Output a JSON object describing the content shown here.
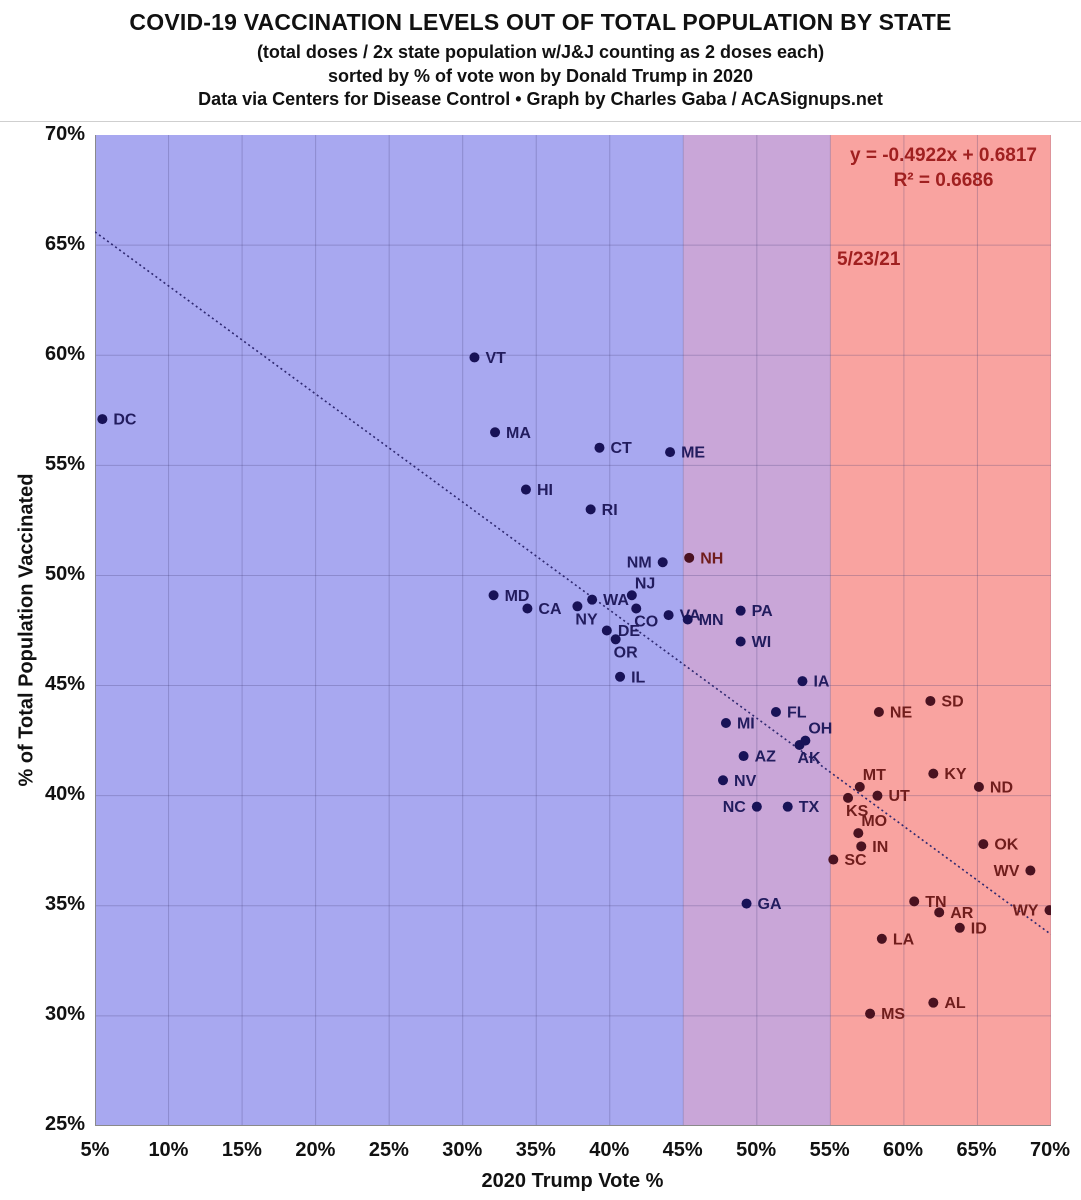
{
  "header": {
    "title": "COVID-19 VACCINATION LEVELS OUT OF TOTAL POPULATION BY STATE",
    "subtitle": "(total doses / 2x state population w/J&J counting as 2 doses each)",
    "sort_note": "sorted by % of vote won by Donald Trump in 2020",
    "source": "Data via Centers for Disease Control • Graph by Charles Gaba / ACASignups.net"
  },
  "annotations": {
    "equation_line1": "y = -0.4922x + 0.6817",
    "equation_line2": "R² = 0.6686",
    "date": "5/23/21",
    "annotation_color": "#a02020"
  },
  "axes": {
    "x_title": "2020 Trump Vote %",
    "y_title": "% of Total Population Vaccinated",
    "x_ticks": [
      {
        "v": 5,
        "t": "5%"
      },
      {
        "v": 10,
        "t": "10%"
      },
      {
        "v": 15,
        "t": "15%"
      },
      {
        "v": 20,
        "t": "20%"
      },
      {
        "v": 25,
        "t": "25%"
      },
      {
        "v": 30,
        "t": "30%"
      },
      {
        "v": 35,
        "t": "35%"
      },
      {
        "v": 40,
        "t": "40%"
      },
      {
        "v": 45,
        "t": "45%"
      },
      {
        "v": 50,
        "t": "50%"
      },
      {
        "v": 55,
        "t": "55%"
      },
      {
        "v": 60,
        "t": "60%"
      },
      {
        "v": 65,
        "t": "65%"
      },
      {
        "v": 70,
        "t": "70%"
      }
    ],
    "y_ticks": [
      {
        "v": 70,
        "t": "70%"
      },
      {
        "v": 65,
        "t": "65%"
      },
      {
        "v": 60,
        "t": "60%"
      },
      {
        "v": 55,
        "t": "55%"
      },
      {
        "v": 50,
        "t": "50%"
      },
      {
        "v": 45,
        "t": "45%"
      },
      {
        "v": 40,
        "t": "40%"
      },
      {
        "v": 35,
        "t": "35%"
      },
      {
        "v": 30,
        "t": "30%"
      },
      {
        "v": 25,
        "t": "25%"
      }
    ]
  },
  "regions": [
    {
      "name": "biden-strong",
      "from": 5,
      "to": 45,
      "color": "#a8a8f0"
    },
    {
      "name": "swing",
      "from": 45,
      "to": 55,
      "color": "#c9a6d8"
    },
    {
      "name": "trump-strong",
      "from": 55,
      "to": 70,
      "color": "#f9a3a0"
    }
  ],
  "point_colors": {
    "navy_dot": "#181257",
    "navy_label": "#221c5e",
    "maroon_dot": "#4a1220",
    "maroon_label": "#701d1c"
  },
  "grid_color": "rgba(70,60,120,0.28)",
  "axis_line_color": "#8a8a8a",
  "chart_data": {
    "type": "scatter",
    "title": "COVID-19 VACCINATION LEVELS OUT OF TOTAL POPULATION BY STATE",
    "xlabel": "2020 Trump Vote %",
    "ylabel": "% of Total Population Vaccinated",
    "xlim": [
      5,
      70
    ],
    "ylim": [
      25,
      70
    ],
    "grid": true,
    "legend": false,
    "trendline": {
      "equation": "y = -0.4922x + 0.6817",
      "r_squared": 0.6686,
      "x1": 5,
      "y1": 65.6,
      "x2": 70,
      "y2": 33.7,
      "style": "dotted",
      "color": "#2e2870"
    },
    "points": [
      {
        "state": "DC",
        "x": 5.5,
        "y": 57.1,
        "color": "navy",
        "pos": "r"
      },
      {
        "state": "VT",
        "x": 30.8,
        "y": 59.9,
        "color": "navy",
        "pos": "r"
      },
      {
        "state": "MA",
        "x": 32.2,
        "y": 56.5,
        "color": "navy",
        "pos": "r"
      },
      {
        "state": "CT",
        "x": 39.3,
        "y": 55.8,
        "color": "navy",
        "pos": "r"
      },
      {
        "state": "ME",
        "x": 44.1,
        "y": 55.6,
        "color": "navy",
        "pos": "r"
      },
      {
        "state": "HI",
        "x": 34.3,
        "y": 53.9,
        "color": "navy",
        "pos": "r"
      },
      {
        "state": "RI",
        "x": 38.7,
        "y": 53.0,
        "color": "navy",
        "pos": "r"
      },
      {
        "state": "NM",
        "x": 43.6,
        "y": 50.6,
        "color": "navy",
        "pos": "l"
      },
      {
        "state": "NH",
        "x": 45.4,
        "y": 50.8,
        "color": "maroon",
        "pos": "r"
      },
      {
        "state": "MD",
        "x": 32.1,
        "y": 49.1,
        "color": "navy",
        "pos": "r"
      },
      {
        "state": "CA",
        "x": 34.4,
        "y": 48.5,
        "color": "navy",
        "pos": "r"
      },
      {
        "state": "NY",
        "x": 37.8,
        "y": 48.6,
        "color": "navy",
        "pos": "b"
      },
      {
        "state": "WA",
        "x": 38.8,
        "y": 48.9,
        "color": "navy",
        "pos": "r"
      },
      {
        "state": "NJ",
        "x": 41.5,
        "y": 49.1,
        "color": "navy",
        "pos": "a"
      },
      {
        "state": "DE",
        "x": 39.8,
        "y": 47.5,
        "color": "navy",
        "pos": "r"
      },
      {
        "state": "OR",
        "x": 40.4,
        "y": 47.1,
        "color": "navy",
        "pos": "b"
      },
      {
        "state": "CO",
        "x": 41.8,
        "y": 48.5,
        "color": "navy",
        "pos": "b"
      },
      {
        "state": "VA",
        "x": 44.0,
        "y": 48.2,
        "color": "navy",
        "pos": "r"
      },
      {
        "state": "MN",
        "x": 45.3,
        "y": 48.0,
        "color": "navy",
        "pos": "r"
      },
      {
        "state": "PA",
        "x": 48.9,
        "y": 48.4,
        "color": "navy",
        "pos": "r"
      },
      {
        "state": "WI",
        "x": 48.9,
        "y": 47.0,
        "color": "navy",
        "pos": "r"
      },
      {
        "state": "IL",
        "x": 40.7,
        "y": 45.4,
        "color": "navy",
        "pos": "r"
      },
      {
        "state": "IA",
        "x": 53.1,
        "y": 45.2,
        "color": "navy",
        "pos": "r"
      },
      {
        "state": "SD",
        "x": 61.8,
        "y": 44.3,
        "color": "maroon",
        "pos": "r"
      },
      {
        "state": "FL",
        "x": 51.3,
        "y": 43.8,
        "color": "navy",
        "pos": "r"
      },
      {
        "state": "NE",
        "x": 58.3,
        "y": 43.8,
        "color": "maroon",
        "pos": "r"
      },
      {
        "state": "MI",
        "x": 47.9,
        "y": 43.3,
        "color": "navy",
        "pos": "r"
      },
      {
        "state": "OH",
        "x": 53.3,
        "y": 42.5,
        "color": "navy",
        "pos": "a"
      },
      {
        "state": "AK",
        "x": 52.9,
        "y": 42.3,
        "color": "navy",
        "pos": "b"
      },
      {
        "state": "AZ",
        "x": 49.1,
        "y": 41.8,
        "color": "navy",
        "pos": "r"
      },
      {
        "state": "KY",
        "x": 62.0,
        "y": 41.0,
        "color": "maroon",
        "pos": "r"
      },
      {
        "state": "NV",
        "x": 47.7,
        "y": 40.7,
        "color": "navy",
        "pos": "r"
      },
      {
        "state": "MT",
        "x": 57.0,
        "y": 40.4,
        "color": "maroon",
        "pos": "a"
      },
      {
        "state": "ND",
        "x": 65.1,
        "y": 40.4,
        "color": "maroon",
        "pos": "r"
      },
      {
        "state": "UT",
        "x": 58.2,
        "y": 40.0,
        "color": "maroon",
        "pos": "r"
      },
      {
        "state": "KS",
        "x": 56.2,
        "y": 39.9,
        "color": "maroon",
        "pos": "b"
      },
      {
        "state": "NC",
        "x": 50.0,
        "y": 39.5,
        "color": "navy",
        "pos": "l"
      },
      {
        "state": "TX",
        "x": 52.1,
        "y": 39.5,
        "color": "navy",
        "pos": "r"
      },
      {
        "state": "MO",
        "x": 56.9,
        "y": 38.3,
        "color": "maroon",
        "pos": "a"
      },
      {
        "state": "IN",
        "x": 57.1,
        "y": 37.7,
        "color": "maroon",
        "pos": "r"
      },
      {
        "state": "OK",
        "x": 65.4,
        "y": 37.8,
        "color": "maroon",
        "pos": "r"
      },
      {
        "state": "SC",
        "x": 55.2,
        "y": 37.1,
        "color": "maroon",
        "pos": "r"
      },
      {
        "state": "WV",
        "x": 68.6,
        "y": 36.6,
        "color": "maroon",
        "pos": "l"
      },
      {
        "state": "GA",
        "x": 49.3,
        "y": 35.1,
        "color": "navy",
        "pos": "r"
      },
      {
        "state": "TN",
        "x": 60.7,
        "y": 35.2,
        "color": "maroon",
        "pos": "r"
      },
      {
        "state": "AR",
        "x": 62.4,
        "y": 34.7,
        "color": "maroon",
        "pos": "r"
      },
      {
        "state": "WY",
        "x": 69.9,
        "y": 34.8,
        "color": "maroon",
        "pos": "l"
      },
      {
        "state": "ID",
        "x": 63.8,
        "y": 34.0,
        "color": "maroon",
        "pos": "r"
      },
      {
        "state": "LA",
        "x": 58.5,
        "y": 33.5,
        "color": "maroon",
        "pos": "r"
      },
      {
        "state": "AL",
        "x": 62.0,
        "y": 30.6,
        "color": "maroon",
        "pos": "r"
      },
      {
        "state": "MS",
        "x": 57.7,
        "y": 30.1,
        "color": "maroon",
        "pos": "r"
      }
    ]
  }
}
